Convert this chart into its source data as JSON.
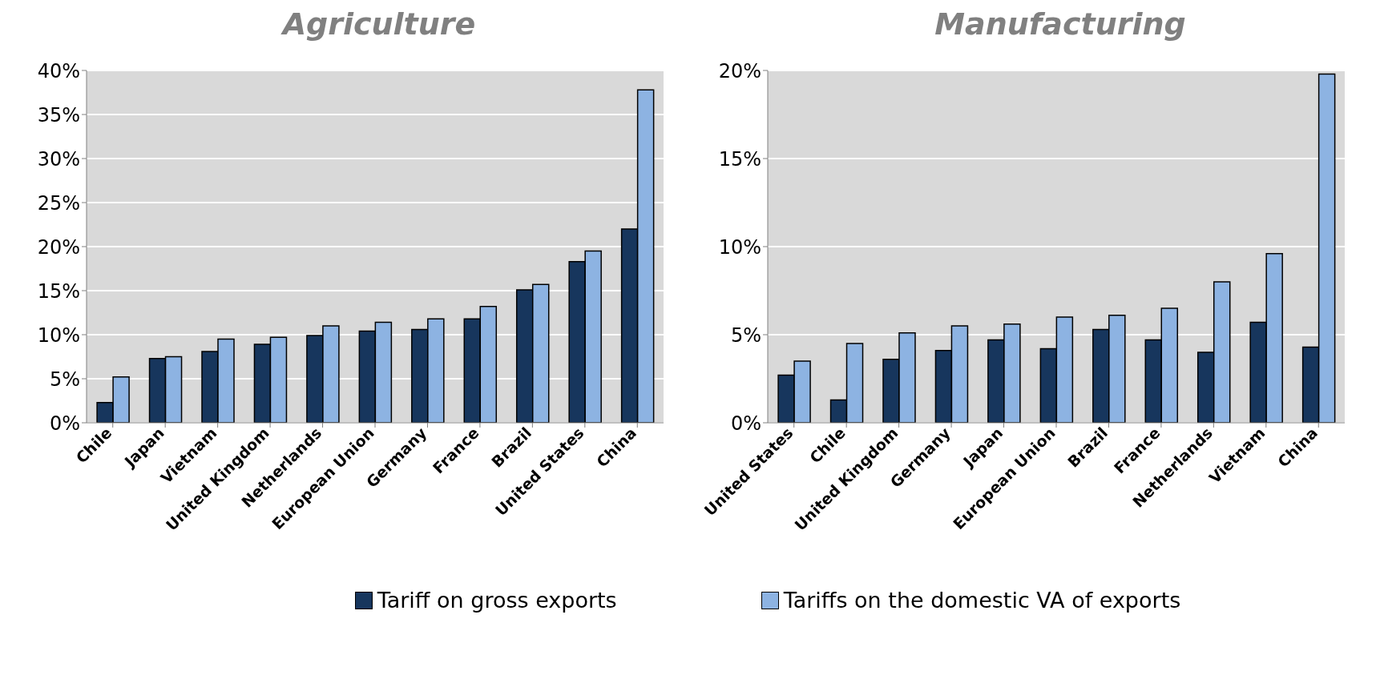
{
  "chart_data": [
    {
      "type": "bar",
      "title": "Agriculture",
      "categories": [
        "Chile",
        "Japan",
        "Vietnam",
        "United Kingdom",
        "Netherlands",
        "European Union",
        "Germany",
        "France",
        "Brazil",
        "United States",
        "China"
      ],
      "series": [
        {
          "name": "Tariff on gross exports",
          "color": "#17365d",
          "values": [
            2.3,
            7.3,
            8.1,
            8.9,
            9.9,
            10.4,
            10.6,
            11.8,
            15.1,
            18.3,
            22.0
          ]
        },
        {
          "name": "Tariffs on the domestic VA of exports",
          "color": "#8db3e2",
          "values": [
            5.2,
            7.5,
            9.5,
            9.7,
            11.0,
            11.4,
            11.8,
            13.2,
            15.7,
            19.5,
            37.8
          ]
        }
      ],
      "ylim": [
        0,
        40
      ],
      "yticks": [
        {
          "value": 0,
          "label": "0%"
        },
        {
          "value": 5,
          "label": "5%"
        },
        {
          "value": 10,
          "label": "10%"
        },
        {
          "value": 15,
          "label": "15%"
        },
        {
          "value": 20,
          "label": "20%"
        },
        {
          "value": 25,
          "label": "25%"
        },
        {
          "value": 30,
          "label": "30%"
        },
        {
          "value": 35,
          "label": "35%"
        },
        {
          "value": 40,
          "label": "40%"
        }
      ],
      "grid": "y",
      "legend": "bottom"
    },
    {
      "type": "bar",
      "title": "Manufacturing",
      "categories": [
        "United States",
        "Chile",
        "United Kingdom",
        "Germany",
        "Japan",
        "European Union",
        "Brazil",
        "France",
        "Netherlands",
        "Vietnam",
        "China"
      ],
      "series": [
        {
          "color": "#17365d",
          "values": [
            2.7,
            1.3,
            3.6,
            4.1,
            4.7,
            4.2,
            5.3,
            4.7,
            4.0,
            5.7,
            4.3
          ]
        },
        {
          "color": "#8db3e2",
          "values": [
            3.5,
            4.5,
            5.1,
            5.5,
            5.6,
            6.0,
            6.1,
            6.5,
            8.0,
            9.6,
            19.8
          ]
        }
      ],
      "ylim": [
        0,
        20
      ],
      "yticks": [
        {
          "value": 0,
          "label": "0%"
        },
        {
          "value": 5,
          "label": "5%"
        },
        {
          "value": 10,
          "label": "10%"
        },
        {
          "value": 15,
          "label": "15%"
        },
        {
          "value": 20,
          "label": "20%"
        }
      ],
      "grid": "y"
    }
  ]
}
